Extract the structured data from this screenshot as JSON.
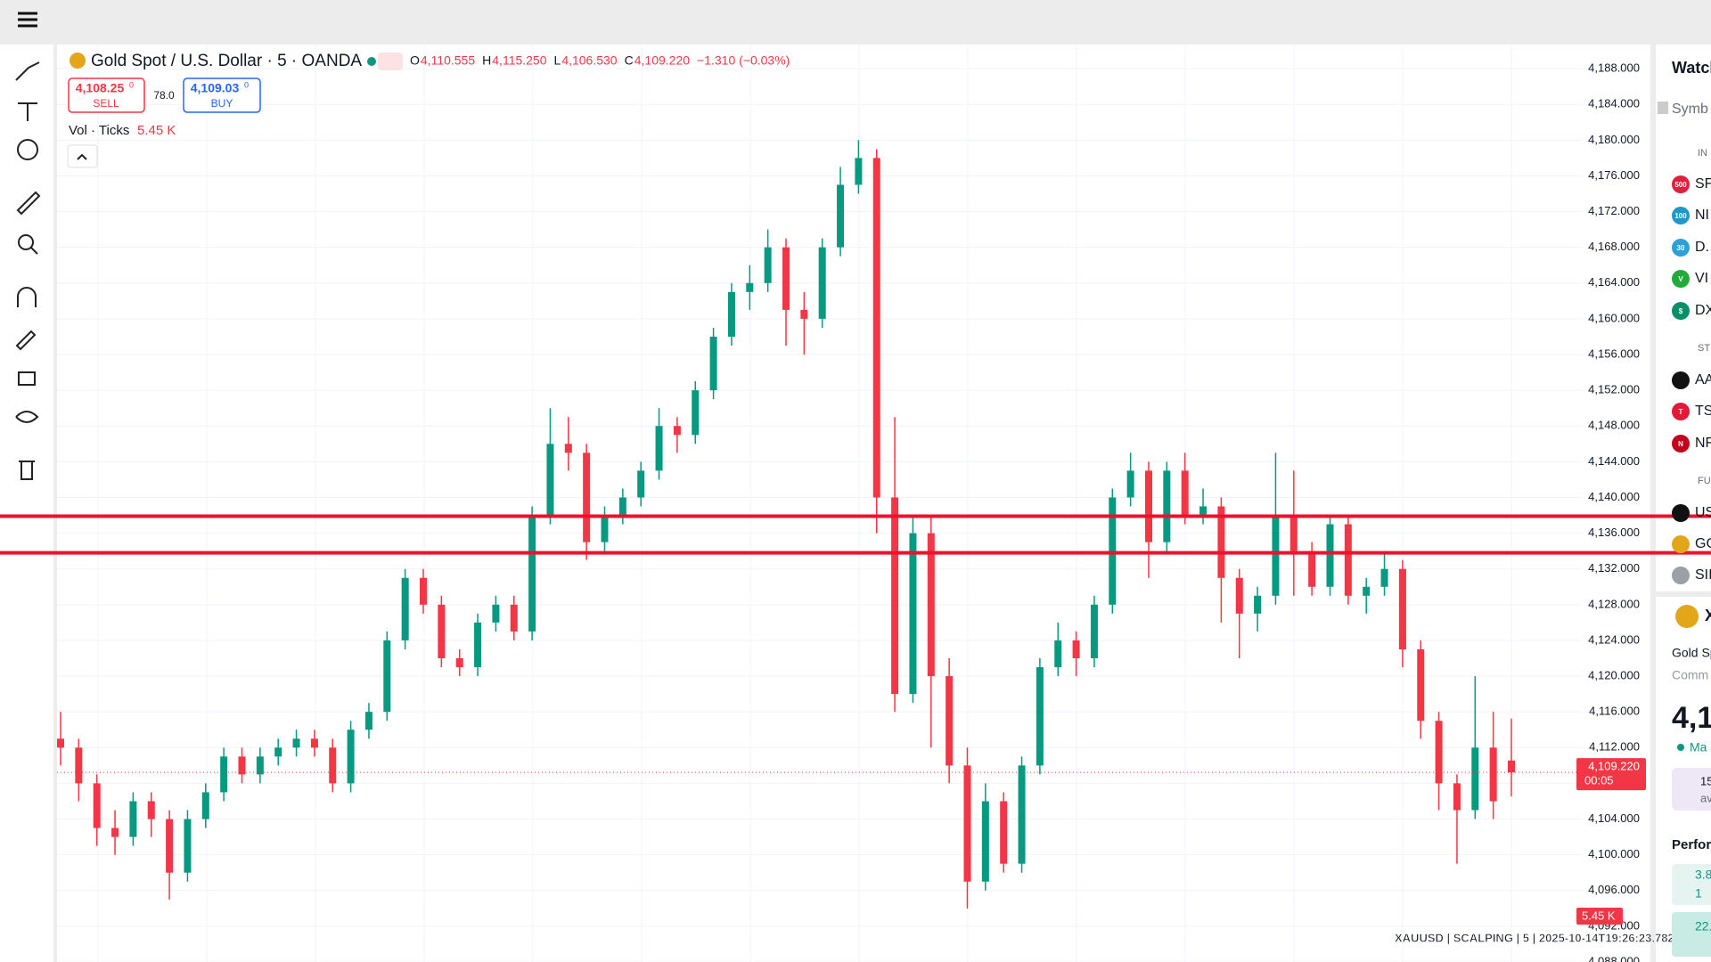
{
  "header": {
    "title": "Gold Spot / U.S. Dollar · 5 · OANDA",
    "ohlc": [
      {
        "key": "O",
        "value": "4,110.555"
      },
      {
        "key": "H",
        "value": "4,115.250"
      },
      {
        "key": "L",
        "value": "4,106.530"
      },
      {
        "key": "C",
        "value": "4,109.220"
      }
    ],
    "change": "−1.310 (−0.03%)",
    "sell_price": "4,108.25",
    "sell_sup": "0",
    "sell_label": "SELL",
    "spread": "78.0",
    "buy_price": "4,109.03",
    "buy_sup": "0",
    "buy_label": "BUY",
    "volume_label": "Vol · Ticks",
    "volume_value": "5.45 K"
  },
  "chart_data": {
    "type": "candlestick",
    "up_color": "#089981",
    "down_color": "#f23645",
    "ohlc": [
      [
        4113,
        4116,
        4110,
        4112
      ],
      [
        4112,
        4113,
        4106,
        4108
      ],
      [
        4108,
        4109,
        4101,
        4103
      ],
      [
        4103,
        4105,
        4100,
        4102
      ],
      [
        4102,
        4107,
        4101,
        4106
      ],
      [
        4106,
        4107,
        4102,
        4104
      ],
      [
        4104,
        4105,
        4095,
        4098
      ],
      [
        4098,
        4105,
        4097,
        4104
      ],
      [
        4104,
        4108,
        4103,
        4107
      ],
      [
        4107,
        4112,
        4106,
        4111
      ],
      [
        4111,
        4112,
        4108,
        4109
      ],
      [
        4109,
        4112,
        4108,
        4111
      ],
      [
        4111,
        4113,
        4110,
        4112
      ],
      [
        4112,
        4114,
        4111,
        4113
      ],
      [
        4113,
        4114,
        4111,
        4112
      ],
      [
        4112,
        4113,
        4107,
        4108
      ],
      [
        4108,
        4115,
        4107,
        4114
      ],
      [
        4114,
        4117,
        4113,
        4116
      ],
      [
        4116,
        4125,
        4115,
        4124
      ],
      [
        4124,
        4132,
        4123,
        4131
      ],
      [
        4131,
        4132,
        4127,
        4128
      ],
      [
        4128,
        4129,
        4121,
        4122
      ],
      [
        4122,
        4123,
        4120,
        4121
      ],
      [
        4121,
        4127,
        4120,
        4126
      ],
      [
        4126,
        4129,
        4125,
        4128
      ],
      [
        4128,
        4129,
        4124,
        4125
      ],
      [
        4125,
        4139,
        4124,
        4138
      ],
      [
        4138,
        4150,
        4137,
        4146
      ],
      [
        4146,
        4149,
        4143,
        4145
      ],
      [
        4145,
        4146,
        4133,
        4135
      ],
      [
        4135,
        4139,
        4134,
        4138
      ],
      [
        4138,
        4141,
        4137,
        4140
      ],
      [
        4140,
        4144,
        4139,
        4143
      ],
      [
        4143,
        4150,
        4142,
        4148
      ],
      [
        4148,
        4149,
        4145,
        4147
      ],
      [
        4147,
        4153,
        4146,
        4152
      ],
      [
        4152,
        4159,
        4151,
        4158
      ],
      [
        4158,
        4164,
        4157,
        4163
      ],
      [
        4163,
        4166,
        4161,
        4164
      ],
      [
        4164,
        4170,
        4163,
        4168
      ],
      [
        4168,
        4169,
        4157,
        4161
      ],
      [
        4161,
        4163,
        4156,
        4160
      ],
      [
        4160,
        4169,
        4159,
        4168
      ],
      [
        4168,
        4177,
        4167,
        4175
      ],
      [
        4175,
        4180,
        4174,
        4178
      ],
      [
        4178,
        4179,
        4136,
        4140
      ],
      [
        4140,
        4149,
        4116,
        4118
      ],
      [
        4118,
        4138,
        4117,
        4136
      ],
      [
        4136,
        4138,
        4112,
        4120
      ],
      [
        4120,
        4122,
        4108,
        4110
      ],
      [
        4110,
        4112,
        4094,
        4097
      ],
      [
        4097,
        4108,
        4096,
        4106
      ],
      [
        4106,
        4107,
        4098,
        4099
      ],
      [
        4099,
        4111,
        4098,
        4110
      ],
      [
        4110,
        4122,
        4109,
        4121
      ],
      [
        4121,
        4126,
        4120,
        4124
      ],
      [
        4124,
        4125,
        4120,
        4122
      ],
      [
        4122,
        4129,
        4121,
        4128
      ],
      [
        4128,
        4141,
        4127,
        4140
      ],
      [
        4140,
        4145,
        4139,
        4143
      ],
      [
        4143,
        4144,
        4131,
        4135
      ],
      [
        4135,
        4144,
        4134,
        4143
      ],
      [
        4143,
        4145,
        4137,
        4138
      ],
      [
        4138,
        4141,
        4137,
        4139
      ],
      [
        4139,
        4140,
        4126,
        4131
      ],
      [
        4131,
        4132,
        4122,
        4127
      ],
      [
        4127,
        4130,
        4125,
        4129
      ],
      [
        4129,
        4145,
        4128,
        4138
      ],
      [
        4138,
        4143,
        4129,
        4134
      ],
      [
        4134,
        4135,
        4129,
        4130
      ],
      [
        4130,
        4138,
        4129,
        4137
      ],
      [
        4137,
        4138,
        4128,
        4129
      ],
      [
        4129,
        4131,
        4127,
        4130
      ],
      [
        4130,
        4134,
        4129,
        4132
      ],
      [
        4132,
        4133,
        4121,
        4123
      ],
      [
        4123,
        4124,
        4113,
        4115
      ],
      [
        4115,
        4116,
        4105,
        4108
      ],
      [
        4108,
        4109,
        4099,
        4105
      ],
      [
        4105,
        4120,
        4104,
        4112
      ],
      [
        4112,
        4116,
        4104,
        4106
      ],
      [
        4110.555,
        4115.25,
        4106.53,
        4109.22
      ]
    ],
    "ylim": [
      4088,
      4190.7
    ],
    "yticks": [
      {
        "value": 4088,
        "label": "4,088.000"
      },
      {
        "value": 4092,
        "label": "4,092.000"
      },
      {
        "value": 4096,
        "label": "4,096.000"
      },
      {
        "value": 4100,
        "label": "4,100.000"
      },
      {
        "value": 4104,
        "label": "4,104.000"
      },
      {
        "value": 4108,
        "label": "4,108.000"
      },
      {
        "value": 4112,
        "label": "4,112.000"
      },
      {
        "value": 4116,
        "label": "4,116.000"
      },
      {
        "value": 4120,
        "label": "4,120.000"
      },
      {
        "value": 4124,
        "label": "4,124.000"
      },
      {
        "value": 4128,
        "label": "4,128.000"
      },
      {
        "value": 4132,
        "label": "4,132.000"
      },
      {
        "value": 4136,
        "label": "4,136.000"
      },
      {
        "value": 4140,
        "label": "4,140.000"
      },
      {
        "value": 4144,
        "label": "4,144.000"
      },
      {
        "value": 4148,
        "label": "4,148.000"
      },
      {
        "value": 4152,
        "label": "4,152.000"
      },
      {
        "value": 4156,
        "label": "4,156.000"
      },
      {
        "value": 4160,
        "label": "4,160.000"
      },
      {
        "value": 4164,
        "label": "4,164.000"
      },
      {
        "value": 4168,
        "label": "4,168.000"
      },
      {
        "value": 4172,
        "label": "4,172.000"
      },
      {
        "value": 4176,
        "label": "4,176.000"
      },
      {
        "value": 4180,
        "label": "4,180.000"
      },
      {
        "value": 4184,
        "label": "4,184.000"
      },
      {
        "value": 4188,
        "label": "4,188.000"
      }
    ],
    "grid": true,
    "levels": [
      4137.9,
      4133.8
    ],
    "level_color": "#f0102e",
    "last_price": {
      "value": 4109.22,
      "label": "4,109.220",
      "countdown": "00:05"
    },
    "volume_axis_label": "5.45 K",
    "watermark": "XAUUSD | SCALPING | 5 | 2025-10-14T19:26:23.782Z"
  },
  "watchlist": {
    "title": "Watch",
    "search": "Symb",
    "sections": [
      "IN",
      "ST",
      "FU"
    ],
    "items": [
      {
        "badge": "500",
        "name": "SF",
        "color": "#e01f3d"
      },
      {
        "badge": "100",
        "name": "NI",
        "color": "#2196c9"
      },
      {
        "badge": "30",
        "name": "D.",
        "color": "#2f9fd6"
      },
      {
        "badge": "V",
        "name": "VI",
        "color": "#22ab3b"
      },
      {
        "badge": "$",
        "name": "DX",
        "color": "#0a8f6b"
      },
      {
        "badge": "",
        "name": "AA",
        "color": "#111"
      },
      {
        "badge": "T",
        "name": "TS",
        "color": "#e31937"
      },
      {
        "badge": "N",
        "name": "NF",
        "color": "#c4001a"
      },
      {
        "badge": "",
        "name": "US",
        "color": "#111"
      },
      {
        "badge": "",
        "name": "GC",
        "color": "#e3a51a"
      },
      {
        "badge": "",
        "name": "SII",
        "color": "#9aa0a6"
      }
    ],
    "detail_symbol": "X",
    "detail_name": "Gold Sp",
    "detail_type": "Comm",
    "detail_price": "4,1",
    "detail_status": "Ma",
    "promo": "15",
    "promo_sub": "av",
    "perf_title": "Perfor",
    "perf_values": [
      "3.8",
      "1",
      "22."
    ]
  }
}
